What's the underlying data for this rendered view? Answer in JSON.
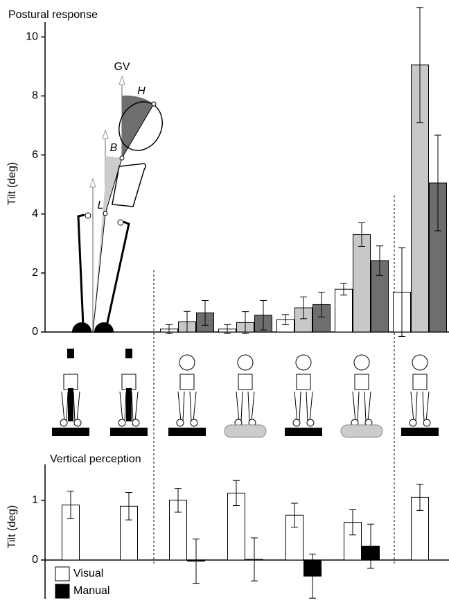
{
  "chart_data": [
    {
      "type": "bar",
      "title": "Postural response",
      "y_label": "Tilt (deg)",
      "ylim": [
        0,
        10.5
      ],
      "yticks": [
        0,
        2,
        4,
        6,
        8,
        10
      ],
      "categories": [
        null,
        null,
        null,
        null,
        null,
        null,
        null
      ],
      "series": [
        {
          "color": "#ffffff",
          "values": [
            null,
            null,
            0.1,
            0.1,
            0.42,
            1.45,
            1.35
          ],
          "errors": [
            null,
            null,
            0.15,
            0.15,
            0.17,
            0.2,
            1.5
          ]
        },
        {
          "color": "#c8c8c8",
          "values": [
            null,
            null,
            0.35,
            0.32,
            0.82,
            3.3,
            9.05
          ],
          "errors": [
            null,
            null,
            0.35,
            0.37,
            0.37,
            0.4,
            1.95
          ]
        },
        {
          "color": "#6e6e6e",
          "values": [
            null,
            null,
            0.65,
            0.57,
            0.93,
            2.42,
            5.05
          ],
          "errors": [
            null,
            null,
            0.42,
            0.5,
            0.42,
            0.5,
            1.62
          ]
        }
      ],
      "annotations": [
        "GV",
        "H",
        "B",
        "L"
      ]
    },
    {
      "type": "bar",
      "title": "Vertical perception",
      "y_label": "Tilt (deg)",
      "ylim": [
        -0.65,
        1.6
      ],
      "yticks": [
        0,
        1
      ],
      "categories": [
        null,
        null,
        null,
        null,
        null,
        null,
        null
      ],
      "series": [
        {
          "name": "Visual",
          "color": "#ffffff",
          "values": [
            0.92,
            0.9,
            1.0,
            1.12,
            0.75,
            0.63,
            1.05
          ],
          "errors": [
            0.23,
            0.23,
            0.2,
            0.21,
            0.2,
            0.21,
            0.22
          ]
        },
        {
          "name": "Manual",
          "color": "#000000",
          "values": [
            null,
            null,
            -0.02,
            0.01,
            -0.27,
            0.23,
            null
          ],
          "errors": [
            null,
            null,
            0.37,
            0.36,
            0.37,
            0.37,
            null
          ]
        }
      ]
    }
  ]
}
